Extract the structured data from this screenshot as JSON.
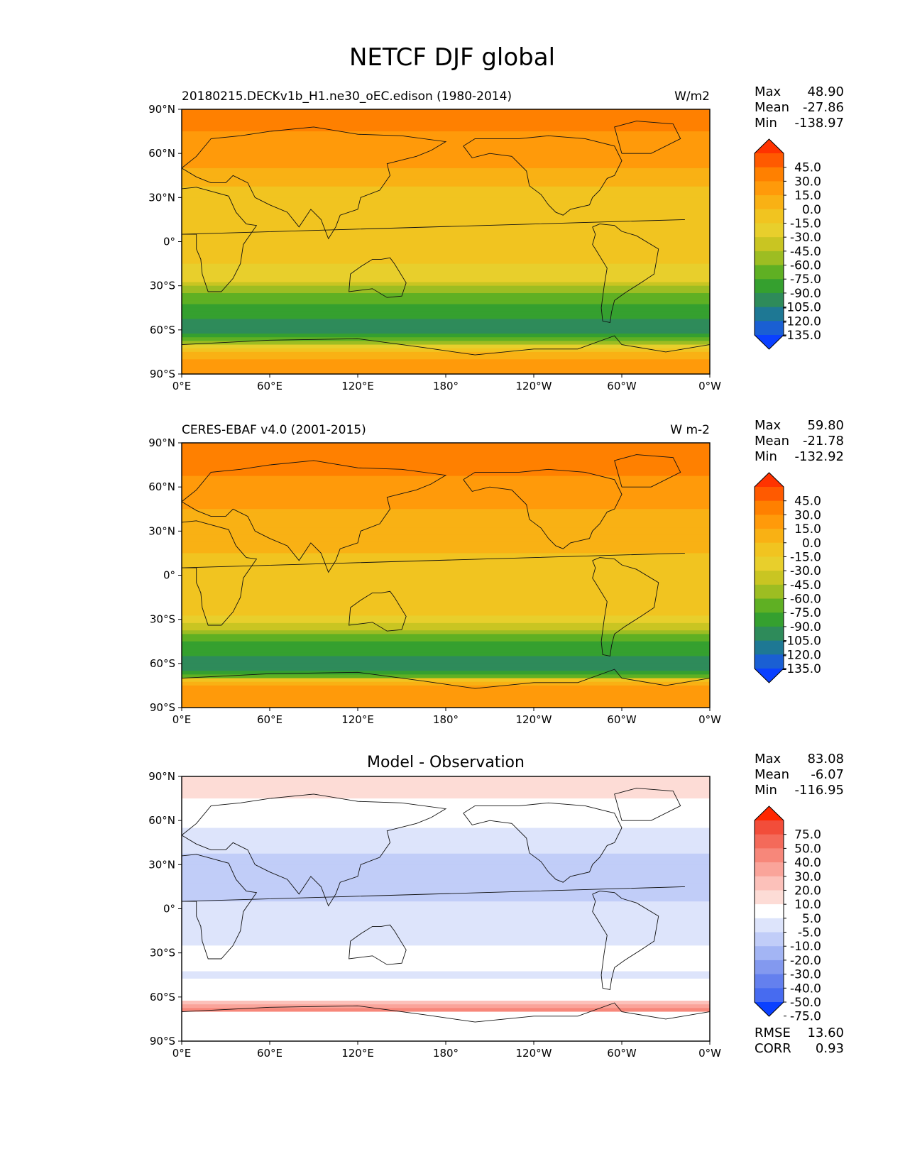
{
  "figure_title": "NETCF DJF global",
  "chart_data": [
    {
      "type": "heatmap",
      "title": "",
      "left_label": "20180215.DECKv1b_H1.ne30_oEC.edison (1980-2014)",
      "units": "W/m2",
      "x_ticks": [
        "0°E",
        "60°E",
        "120°E",
        "180°",
        "120°W",
        "60°W",
        "0°W"
      ],
      "y_ticks": [
        "90°N",
        "60°N",
        "30°N",
        "0°",
        "30°S",
        "60°S",
        "90°S"
      ],
      "xlim": [
        0,
        360
      ],
      "ylim": [
        -90,
        90
      ],
      "stats": {
        "max_label": "Max",
        "max": "48.90",
        "mean_label": "Mean",
        "mean": "-27.86",
        "min_label": "Min",
        "min": "-138.97"
      },
      "colorbar": {
        "labels": [
          "45.0",
          "30.0",
          "15.0",
          "0.0",
          "-15.0",
          "-30.0",
          "-45.0",
          "-60.0",
          "-75.0",
          "-90.0",
          "-105.0",
          "-120.0",
          "-135.0"
        ],
        "colors": [
          "#ff3300",
          "#ff5a00",
          "#ff8000",
          "#ff9a0a",
          "#f9b114",
          "#f1c420",
          "#e8cf2c",
          "#c9c522",
          "#9dbd22",
          "#5fb023",
          "#35a02f",
          "#2e8b5a",
          "#1e7894",
          "#1a5fd3",
          "#0a40ff"
        ],
        "extend": "both"
      },
      "zonal_profile": [
        [
          90,
          20
        ],
        [
          75,
          15
        ],
        [
          60,
          8
        ],
        [
          45,
          -5
        ],
        [
          30,
          -25
        ],
        [
          15,
          -30
        ],
        [
          0,
          -30
        ],
        [
          -15,
          -30
        ],
        [
          -25,
          -40
        ],
        [
          -35,
          -75
        ],
        [
          -45,
          -95
        ],
        [
          -55,
          -110
        ],
        [
          -62,
          -110
        ],
        [
          -68,
          -80
        ],
        [
          -72,
          -35
        ],
        [
          -80,
          5
        ],
        [
          -90,
          5
        ]
      ]
    },
    {
      "type": "heatmap",
      "title": "",
      "left_label": "CERES-EBAF v4.0 (2001-2015)",
      "units": "W m-2",
      "x_ticks": [
        "0°E",
        "60°E",
        "120°E",
        "180°",
        "120°W",
        "60°W",
        "0°W"
      ],
      "y_ticks": [
        "90°N",
        "60°N",
        "30°N",
        "0°",
        "30°S",
        "60°S",
        "90°S"
      ],
      "xlim": [
        0,
        360
      ],
      "ylim": [
        -90,
        90
      ],
      "stats": {
        "max_label": "Max",
        "max": "59.80",
        "mean_label": "Mean",
        "mean": "-21.78",
        "min_label": "Min",
        "min": "-132.92"
      },
      "colorbar": {
        "labels": [
          "45.0",
          "30.0",
          "15.0",
          "0.0",
          "-15.0",
          "-30.0",
          "-45.0",
          "-60.0",
          "-75.0",
          "-90.0",
          "-105.0",
          "-120.0",
          "-135.0"
        ],
        "colors": [
          "#ff3300",
          "#ff5a00",
          "#ff8000",
          "#ff9a0a",
          "#f9b114",
          "#f1c420",
          "#e8cf2c",
          "#c9c522",
          "#9dbd22",
          "#5fb023",
          "#35a02f",
          "#2e8b5a",
          "#1e7894",
          "#1a5fd3",
          "#0a40ff"
        ],
        "extend": "both"
      },
      "zonal_profile": [
        [
          90,
          25
        ],
        [
          75,
          20
        ],
        [
          60,
          10
        ],
        [
          45,
          0
        ],
        [
          30,
          -10
        ],
        [
          15,
          -15
        ],
        [
          0,
          -20
        ],
        [
          -15,
          -20
        ],
        [
          -25,
          -25
        ],
        [
          -35,
          -55
        ],
        [
          -45,
          -90
        ],
        [
          -55,
          -105
        ],
        [
          -62,
          -110
        ],
        [
          -68,
          -95
        ],
        [
          -72,
          -5
        ],
        [
          -80,
          10
        ],
        [
          -90,
          10
        ]
      ]
    },
    {
      "type": "heatmap",
      "title": "Model - Observation",
      "left_label": "",
      "units": "",
      "x_ticks": [
        "0°E",
        "60°E",
        "120°E",
        "180°",
        "120°W",
        "60°W",
        "0°W"
      ],
      "y_ticks": [
        "90°N",
        "60°N",
        "30°N",
        "0°",
        "30°S",
        "60°S",
        "90°S"
      ],
      "xlim": [
        0,
        360
      ],
      "ylim": [
        -90,
        90
      ],
      "stats": {
        "max_label": "Max",
        "max": "83.08",
        "mean_label": "Mean",
        "mean": "-6.07",
        "min_label": "Min",
        "min": "-116.95"
      },
      "colorbar": {
        "labels": [
          "75.0",
          "50.0",
          "40.0",
          "30.0",
          "20.0",
          "10.0",
          "5.0",
          "-5.0",
          "-10.0",
          "-20.0",
          "-30.0",
          "-40.0",
          "-50.0",
          "-75.0"
        ],
        "colors": [
          "#ff2600",
          "#f24d3a",
          "#f46a5a",
          "#f7877a",
          "#faa49a",
          "#fcc1ba",
          "#fddcd6",
          "#ffffff",
          "#dde4fb",
          "#c1cdf8",
          "#a3b5f4",
          "#8399ef",
          "#6480ee",
          "#476bf0",
          "#0a40ff"
        ],
        "extend": "both"
      },
      "zonal_profile": [
        [
          90,
          5
        ],
        [
          75,
          5
        ],
        [
          60,
          -3
        ],
        [
          45,
          -8
        ],
        [
          30,
          -12
        ],
        [
          15,
          -15
        ],
        [
          0,
          -8
        ],
        [
          -15,
          -10
        ],
        [
          -25,
          -5
        ],
        [
          -35,
          3
        ],
        [
          -45,
          -8
        ],
        [
          -55,
          0
        ],
        [
          -63,
          5
        ],
        [
          -68,
          40
        ],
        [
          -72,
          -5
        ],
        [
          -80,
          0
        ],
        [
          -90,
          0
        ]
      ],
      "metrics": {
        "rmse_label": "RMSE",
        "rmse": "13.60",
        "corr_label": "CORR",
        "corr": "0.93"
      }
    }
  ]
}
